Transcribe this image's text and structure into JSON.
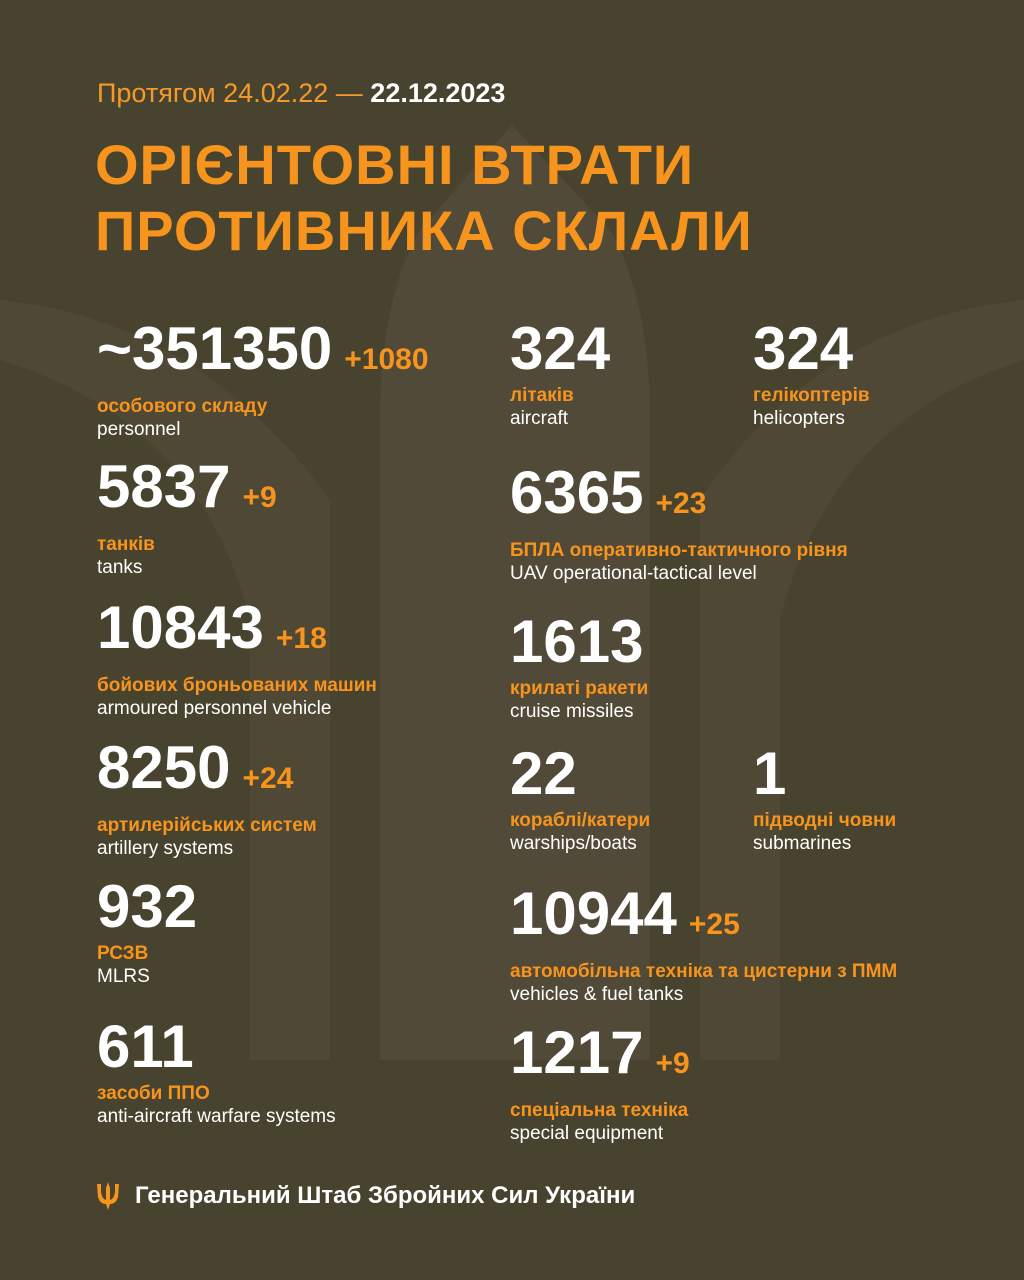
{
  "header": {
    "period_prefix": "Протягом 24.02.22 —",
    "period_end": "22.12.2023",
    "title_line1": "ОРІЄНТОВНІ ВТРАТИ",
    "title_line2": "ПРОТИВНИКА СКЛАЛИ"
  },
  "colors": {
    "background": "#48432f",
    "accent": "#f7941d",
    "text": "#ffffff"
  },
  "stats": [
    {
      "value": "~351350",
      "delta": "+1080",
      "ua": "особового складу",
      "en": "personnel"
    },
    {
      "value": "324",
      "delta": "",
      "ua": "літаків",
      "en": "aircraft"
    },
    {
      "value": "324",
      "delta": "",
      "ua": "гелікоптерів",
      "en": "helicopters"
    },
    {
      "value": "5837",
      "delta": "+9",
      "ua": "танків",
      "en": "tanks"
    },
    {
      "value": "6365",
      "delta": "+23",
      "ua": "БПЛА оперативно-тактичного рівня",
      "en": "UAV operational-tactical level"
    },
    {
      "value": "10843",
      "delta": "+18",
      "ua": "бойових броньованих машин",
      "en": "armoured personnel vehicle"
    },
    {
      "value": "1613",
      "delta": "",
      "ua": "крилаті ракети",
      "en": "cruise missiles"
    },
    {
      "value": "8250",
      "delta": "+24",
      "ua": "артилерійських систем",
      "en": "artillery systems"
    },
    {
      "value": "22",
      "delta": "",
      "ua": "кораблі/катери",
      "en": "warships/boats"
    },
    {
      "value": "1",
      "delta": "",
      "ua": "підводні човни",
      "en": "submarines"
    },
    {
      "value": "932",
      "delta": "",
      "ua": "РСЗВ",
      "en": "MLRS"
    },
    {
      "value": "10944",
      "delta": "+25",
      "ua": "автомобільна техніка та цистерни з ПММ",
      "en": "vehicles & fuel tanks"
    },
    {
      "value": "611",
      "delta": "",
      "ua": "засоби ППО",
      "en": "anti-aircraft warfare systems"
    },
    {
      "value": "1217",
      "delta": "+9",
      "ua": "спеціальна техніка",
      "en": "special equipment"
    }
  ],
  "footer": {
    "icon": "trident-icon",
    "text": "Генеральний Штаб Збройних Сил України"
  }
}
